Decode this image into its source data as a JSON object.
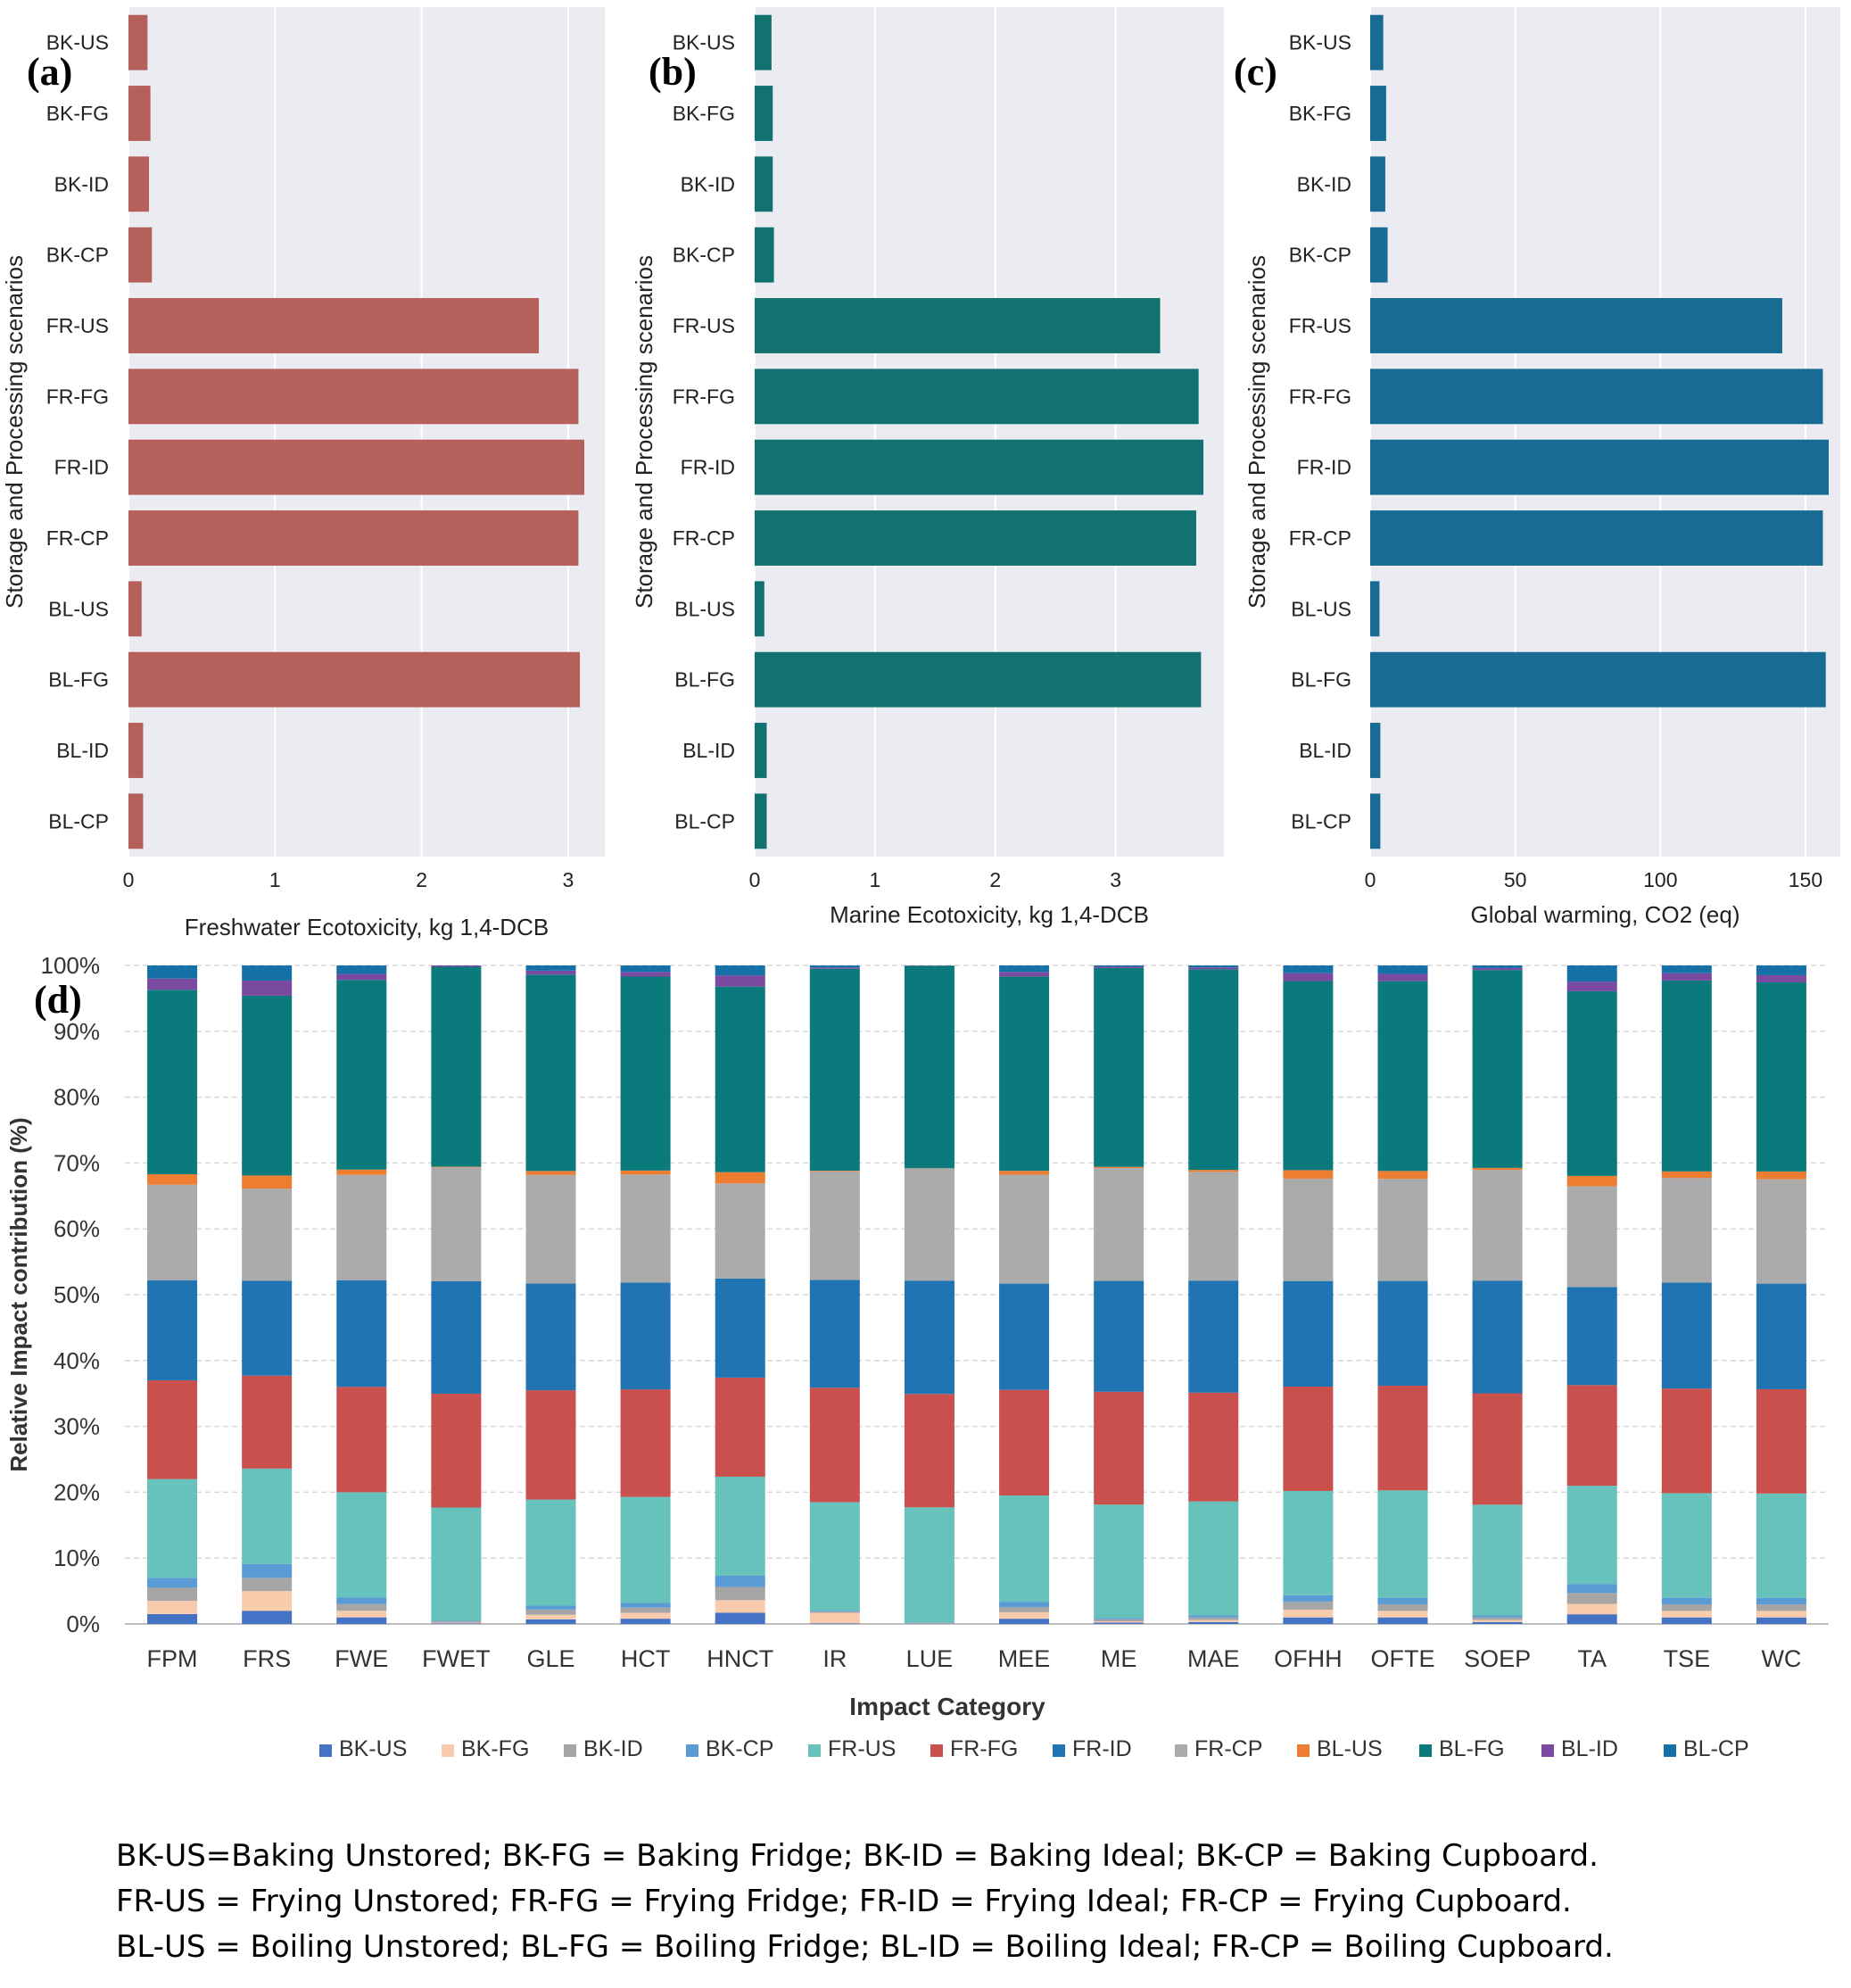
{
  "colors": {
    "panel_a": "#b5605a",
    "panel_b": "#127270",
    "panel_c": "#186c93",
    "panel_bg": "#ebebf2",
    "gridline": "#ffffff"
  },
  "chart_data": [
    {
      "type": "bar",
      "orientation": "horizontal",
      "panel": "(a)",
      "categories": [
        "BK-US",
        "BK-FG",
        "BK-ID",
        "BK-CP",
        "FR-US",
        "FR-FG",
        "FR-ID",
        "FR-CP",
        "BL-US",
        "BL-FG",
        "BL-ID",
        "BL-CP"
      ],
      "values": [
        0.13,
        0.15,
        0.14,
        0.16,
        2.8,
        3.07,
        3.11,
        3.07,
        0.09,
        3.08,
        0.1,
        0.1
      ],
      "xlabel": "Freshwater Ecotoxicity, kg 1,4-DCB",
      "ylabel": "Storage and Processing scenarios",
      "xlim": [
        0,
        3.25
      ],
      "xticks": [
        0,
        1,
        2,
        3
      ],
      "color": "#b5605a"
    },
    {
      "type": "bar",
      "orientation": "horizontal",
      "panel": "(b)",
      "categories": [
        "BK-US",
        "BK-FG",
        "BK-ID",
        "BK-CP",
        "FR-US",
        "FR-FG",
        "FR-ID",
        "FR-CP",
        "BL-US",
        "BL-FG",
        "BL-ID",
        "BL-CP"
      ],
      "values": [
        0.14,
        0.15,
        0.15,
        0.16,
        3.37,
        3.69,
        3.73,
        3.67,
        0.08,
        3.71,
        0.1,
        0.1
      ],
      "xlabel": "Marine Ecotoxicity, kg 1,4-DCB",
      "ylabel": "Storage and Processing scenarios",
      "xlim": [
        0,
        3.9
      ],
      "xticks": [
        0,
        1,
        2,
        3
      ],
      "color": "#127270"
    },
    {
      "type": "bar",
      "orientation": "horizontal",
      "panel": "(c)",
      "categories": [
        "BK-US",
        "BK-FG",
        "BK-ID",
        "BK-CP",
        "FR-US",
        "FR-FG",
        "FR-ID",
        "FR-CP",
        "BL-US",
        "BL-FG",
        "BL-ID",
        "BL-CP"
      ],
      "values": [
        4.5,
        5.5,
        5.2,
        6,
        142,
        156,
        158,
        156,
        3.2,
        157,
        3.5,
        3.5
      ],
      "xlabel": "Global warming, CO2 (eq)",
      "ylabel": "Storage and Processing scenarios",
      "xlim": [
        0,
        162
      ],
      "xticks": [
        0,
        50,
        100,
        150
      ],
      "color": "#186c93"
    },
    {
      "type": "bar",
      "stacked": true,
      "panel": "(d)",
      "categories": [
        "FPM",
        "FRS",
        "FWE",
        "FWET",
        "GLE",
        "HCT",
        "HNCT",
        "IR",
        "LUE",
        "MEE",
        "ME",
        "MAE",
        "OFHH",
        "OFTE",
        "SOEP",
        "TA",
        "TSE",
        "WC"
      ],
      "xlabel": "Impact Category",
      "ylabel": "Relative Impact contribution (%)",
      "ylim": [
        0,
        100
      ],
      "yticks": [
        "0%",
        "10%",
        "20%",
        "30%",
        "40%",
        "50%",
        "60%",
        "70%",
        "80%",
        "90%",
        "100%"
      ],
      "series": [
        {
          "name": "BK-US",
          "color": "#4472c4",
          "values": [
            1.5,
            2,
            1,
            0.1,
            0.7,
            0.8,
            1.7,
            0.1,
            0.05,
            0.8,
            0.2,
            0.3,
            1,
            1,
            0.3,
            1.5,
            1,
            1
          ]
        },
        {
          "name": "BK-FG",
          "color": "#f8cbad",
          "values": [
            2,
            3,
            1,
            0.1,
            0.7,
            0.9,
            1.9,
            1.6,
            0.05,
            1,
            0.2,
            0.3,
            1.2,
            1,
            0.3,
            1.6,
            1,
            1
          ]
        },
        {
          "name": "BK-ID",
          "color": "#a5a5a5",
          "values": [
            2,
            2,
            1,
            0.2,
            0.8,
            0.8,
            2,
            0.2,
            0.05,
            0.8,
            0.3,
            0.4,
            1.2,
            1,
            0.4,
            1.7,
            1,
            1
          ]
        },
        {
          "name": "BK-CP",
          "color": "#5b9bd5",
          "values": [
            1.5,
            2.1,
            1,
            0.1,
            0.6,
            0.7,
            1.7,
            0.1,
            0.05,
            0.8,
            0.2,
            0.3,
            1,
            1,
            0.3,
            1.4,
            1,
            1
          ]
        },
        {
          "name": "FR-US",
          "color": "#66c2bb",
          "values": [
            15,
            14.5,
            16,
            17.2,
            16.2,
            16.2,
            15,
            16.5,
            17.6,
            16.3,
            17.3,
            17.4,
            16,
            16.4,
            16.9,
            15.2,
            16,
            16
          ]
        },
        {
          "name": "FR-FG",
          "color": "#c9504c",
          "values": [
            15,
            14.1,
            16,
            17.3,
            16.7,
            16.4,
            15,
            17.4,
            17.3,
            16.2,
            17.2,
            16.6,
            16,
            16,
            17,
            15.6,
            16,
            16
          ]
        },
        {
          "name": "FR-ID",
          "color": "#1f74b1",
          "values": [
            15.2,
            14.4,
            16.2,
            17.1,
            16.3,
            16.3,
            15,
            16.4,
            17.3,
            16.3,
            16.9,
            17.1,
            16.2,
            16,
            17.2,
            15.2,
            16.2,
            16.2
          ]
        },
        {
          "name": "FR-CP",
          "color": "#ababab",
          "values": [
            14.5,
            14,
            16,
            17.3,
            16.6,
            16.5,
            14.4,
            16.5,
            17.1,
            16.7,
            17.2,
            16.6,
            15.7,
            15.6,
            16.9,
            15.6,
            16,
            16
          ]
        },
        {
          "name": "BL-US",
          "color": "#ed7d31",
          "values": [
            1.6,
            2,
            0.8,
            0.1,
            0.6,
            0.6,
            1.7,
            0.1,
            0.05,
            0.6,
            0.2,
            0.3,
            1.3,
            1.2,
            0.3,
            1.6,
            1,
            1.2
          ]
        },
        {
          "name": "BL-FG",
          "color": "#0b7a7d",
          "values": [
            28,
            27.3,
            28.8,
            30.4,
            30,
            29.6,
            28.1,
            30.7,
            30.9,
            29.8,
            30.3,
            30.6,
            29,
            29,
            30.2,
            28.6,
            29.2,
            29
          ]
        },
        {
          "name": "BL-ID",
          "color": "#7a4aa0",
          "values": [
            1.7,
            2.3,
            0.9,
            0.2,
            0.6,
            0.7,
            1.7,
            0.2,
            0.05,
            0.7,
            0.2,
            0.3,
            1.2,
            1.1,
            0.3,
            1.5,
            1.1,
            1.1
          ]
        },
        {
          "name": "BL-CP",
          "color": "#1670a8",
          "values": [
            2,
            2.3,
            1.3,
            0,
            0.8,
            1,
            1.5,
            0.3,
            0,
            1,
            0.2,
            0.3,
            1.2,
            1.3,
            0.4,
            2.5,
            1.2,
            1.5
          ]
        }
      ]
    }
  ],
  "caption": [
    "BK-US=Baking Unstored; BK-FG = Baking Fridge; BK-ID = Baking Ideal; BK-CP = Baking Cupboard.",
    "FR-US = Frying Unstored; FR-FG = Frying Fridge; FR-ID = Frying Ideal; FR-CP = Frying Cupboard.",
    "BL-US = Boiling Unstored; BL-FG = Boiling Fridge; BL-ID = Boiling Ideal; FR-CP = Boiling Cupboard."
  ]
}
